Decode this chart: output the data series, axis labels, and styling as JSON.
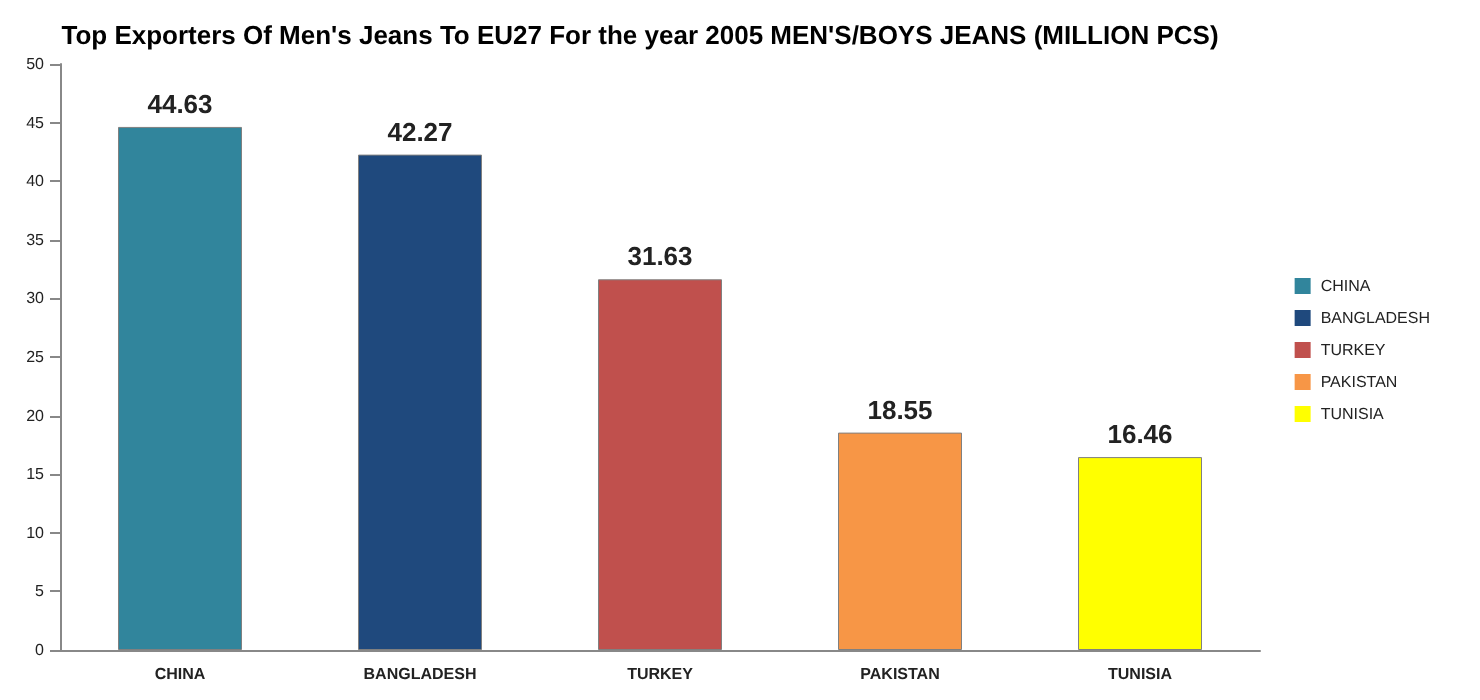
{
  "chart_data": {
    "type": "bar",
    "title": "Top Exporters Of Men's Jeans To EU27 For the year 2005 MEN'S/BOYS JEANS (MILLION PCS)",
    "categories": [
      "CHINA",
      "BANGLADESH",
      "TURKEY",
      "PAKISTAN",
      "TUNISIA"
    ],
    "series": [
      {
        "name": "CHINA",
        "color": "#31859c",
        "values": [
          44.63,
          null,
          null,
          null,
          null
        ]
      },
      {
        "name": "BANGLADESH",
        "color": "#1f497d",
        "values": [
          null,
          42.27,
          null,
          null,
          null
        ]
      },
      {
        "name": "TURKEY",
        "color": "#c0504d",
        "values": [
          null,
          null,
          31.63,
          null,
          null
        ]
      },
      {
        "name": "PAKISTAN",
        "color": "#f79646",
        "values": [
          null,
          null,
          null,
          18.55,
          null
        ]
      },
      {
        "name": "TUNISIA",
        "color": "#ffff00",
        "values": [
          null,
          null,
          null,
          null,
          16.46
        ]
      }
    ],
    "ylim": [
      0,
      50
    ],
    "yticks": [
      0,
      5,
      10,
      15,
      20,
      25,
      30,
      35,
      40,
      45,
      50
    ],
    "data_labels": true,
    "legend": "right"
  }
}
